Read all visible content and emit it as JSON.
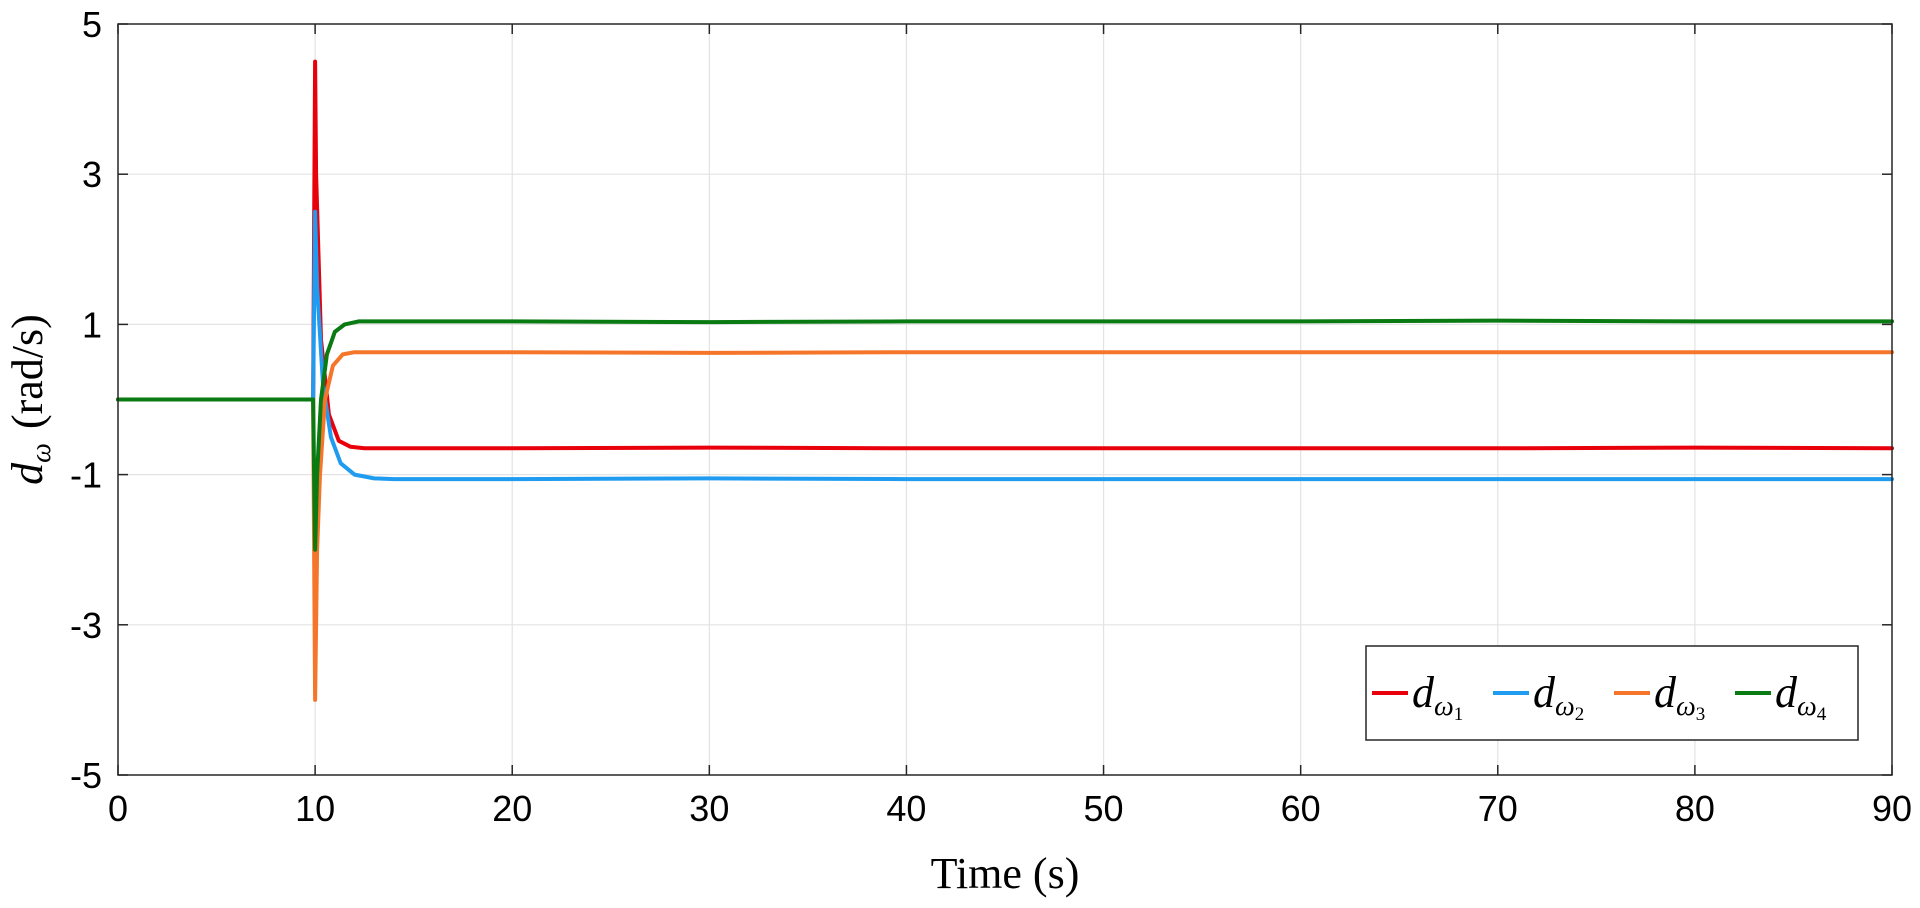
{
  "chart_data": {
    "type": "line",
    "xlabel": "Time (s)",
    "ylabel_main": "d",
    "ylabel_sub": "ω",
    "ylabel_unit": "(rad/s)",
    "xlim": [
      0,
      90
    ],
    "ylim": [
      -5,
      5
    ],
    "xticks": [
      0,
      10,
      20,
      30,
      40,
      50,
      60,
      70,
      80,
      90
    ],
    "yticks": [
      -5,
      -3,
      -1,
      1,
      3,
      5
    ],
    "xtick_labels": [
      "0",
      "10",
      "20",
      "30",
      "40",
      "50",
      "60",
      "70",
      "80",
      "90"
    ],
    "ytick_labels": [
      "-5",
      "-3",
      "-1",
      "1",
      "3",
      "5"
    ],
    "grid": true,
    "legend_position": "bottom-right",
    "series": [
      {
        "name": "dω1",
        "name_main": "d",
        "name_sub": "ω",
        "name_subsub": "1",
        "color": "#e8000b",
        "x": [
          0,
          9.9,
          10.0,
          10.05,
          10.3,
          10.7,
          11.2,
          11.8,
          12.5,
          14,
          20,
          30,
          40,
          50,
          60,
          70,
          80,
          90
        ],
        "y": [
          0,
          0,
          4.5,
          3.0,
          0.8,
          -0.2,
          -0.55,
          -0.63,
          -0.65,
          -0.65,
          -0.65,
          -0.64,
          -0.65,
          -0.65,
          -0.65,
          -0.65,
          -0.64,
          -0.65
        ]
      },
      {
        "name": "dω2",
        "name_main": "d",
        "name_sub": "ω",
        "name_subsub": "2",
        "color": "#1f9bf0",
        "x": [
          0,
          9.9,
          10.0,
          10.1,
          10.4,
          10.8,
          11.3,
          12.0,
          13.0,
          14,
          20,
          30,
          40,
          50,
          60,
          70,
          80,
          90
        ],
        "y": [
          0,
          0,
          2.5,
          1.5,
          0.2,
          -0.5,
          -0.85,
          -1.0,
          -1.05,
          -1.06,
          -1.06,
          -1.05,
          -1.06,
          -1.06,
          -1.06,
          -1.06,
          -1.06,
          -1.06
        ]
      },
      {
        "name": "dω3",
        "name_main": "d",
        "name_sub": "ω",
        "name_subsub": "3",
        "color": "#f5762a",
        "x": [
          0,
          9.9,
          10.0,
          10.1,
          10.25,
          10.5,
          10.9,
          11.4,
          12.0,
          13,
          20,
          30,
          40,
          50,
          60,
          70,
          80,
          90
        ],
        "y": [
          0,
          0,
          -4.0,
          -2.0,
          -1.0,
          0.0,
          0.45,
          0.6,
          0.63,
          0.63,
          0.63,
          0.62,
          0.63,
          0.63,
          0.63,
          0.63,
          0.63,
          0.63
        ]
      },
      {
        "name": "dω4",
        "name_main": "d",
        "name_sub": "ω",
        "name_subsub": "4",
        "color": "#0a7a12",
        "x": [
          0,
          9.9,
          10.0,
          10.1,
          10.3,
          10.6,
          11.0,
          11.5,
          12.2,
          13,
          20,
          30,
          40,
          50,
          60,
          70,
          80,
          90
        ],
        "y": [
          0,
          0,
          -2.0,
          -1.0,
          0.0,
          0.6,
          0.9,
          1.0,
          1.04,
          1.04,
          1.04,
          1.03,
          1.04,
          1.04,
          1.04,
          1.05,
          1.04,
          1.04
        ]
      }
    ]
  }
}
